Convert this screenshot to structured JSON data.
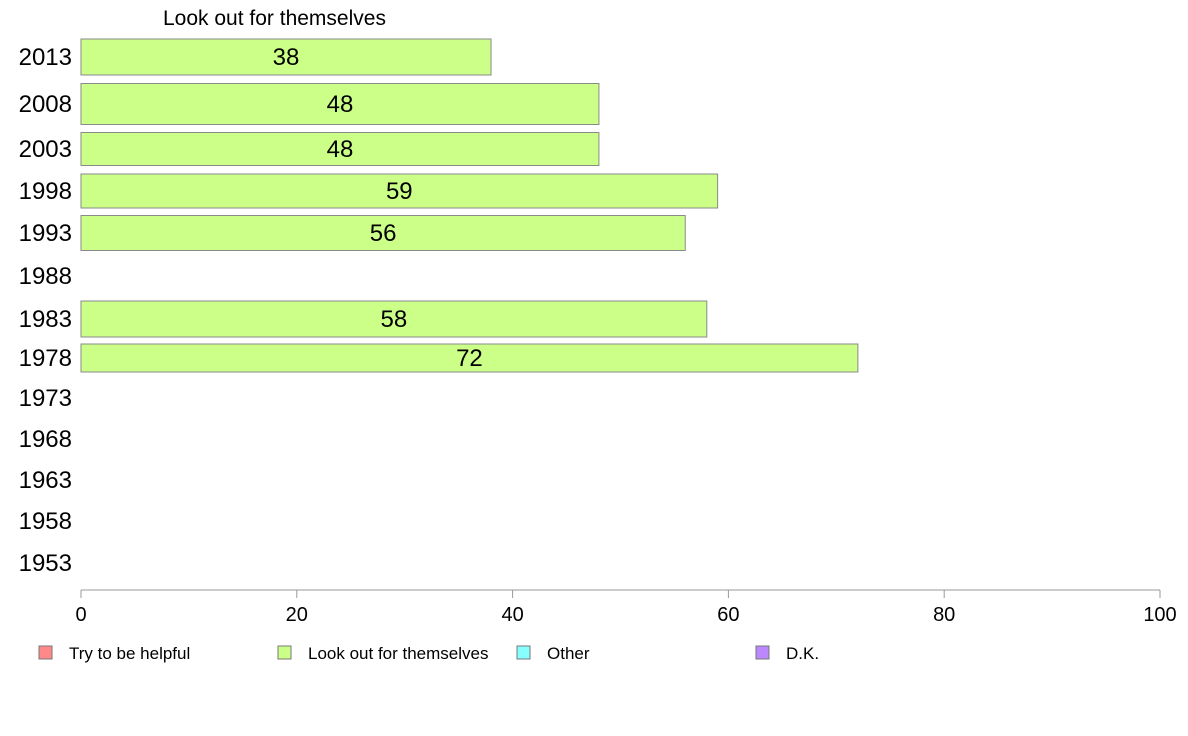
{
  "chart_data": {
    "type": "bar",
    "orientation": "horizontal",
    "title": "Look out for themselves",
    "categories": [
      "2013",
      "2008",
      "2003",
      "1998",
      "1993",
      "1988",
      "1983",
      "1978",
      "1973",
      "1968",
      "1963",
      "1958",
      "1953"
    ],
    "series": [
      {
        "name": "Look out for themselves",
        "values": [
          38,
          48,
          48,
          59,
          56,
          null,
          58,
          72,
          null,
          null,
          null,
          null,
          null
        ],
        "labels": [
          "38",
          "48",
          "48",
          "59",
          "56",
          "",
          "58",
          "72",
          "",
          "",
          "",
          "",
          ""
        ],
        "color": "#ccff88"
      }
    ],
    "xlim": [
      0,
      100
    ],
    "xticks": [
      "0",
      "20",
      "40",
      "60",
      "80",
      "100"
    ],
    "grid": false,
    "legend": {
      "placement": "bottom",
      "items": [
        {
          "label": "Try to be helpful",
          "color": "#ff8888"
        },
        {
          "label": "Look out for themselves",
          "color": "#ccff88"
        },
        {
          "label": "Other",
          "color": "#88ffff"
        },
        {
          "label": "D.K.",
          "color": "#bb88ff"
        }
      ]
    }
  }
}
